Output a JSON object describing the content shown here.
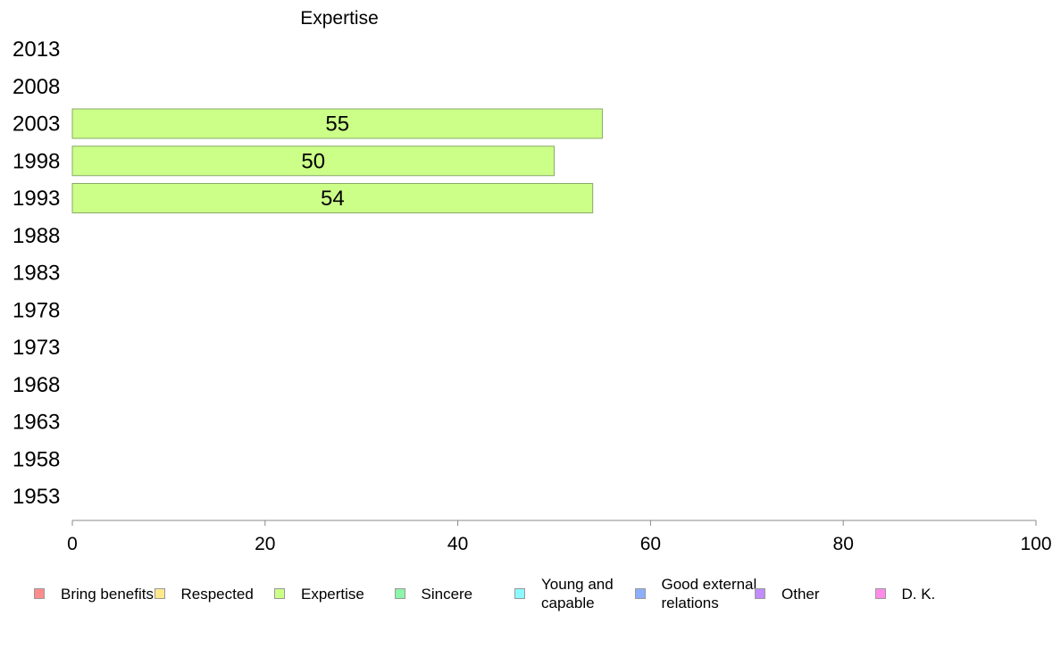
{
  "chart_data": {
    "type": "bar",
    "orientation": "horizontal",
    "title": "Expertise",
    "categories": [
      "2013",
      "2008",
      "2003",
      "1998",
      "1993",
      "1988",
      "1983",
      "1978",
      "1973",
      "1968",
      "1963",
      "1958",
      "1953"
    ],
    "series": [
      {
        "name": "Expertise",
        "color": "#ccff88",
        "values": [
          null,
          null,
          55,
          50,
          54,
          null,
          null,
          null,
          null,
          null,
          null,
          null,
          null
        ]
      }
    ],
    "xlim": [
      0,
      100
    ],
    "xticks": [
      "0",
      "20",
      "40",
      "60",
      "80",
      "100"
    ],
    "grid": false,
    "legend_position": "bottom"
  },
  "legend": [
    {
      "label": "Bring benefits",
      "color": "#ff8c8c"
    },
    {
      "label": "Respected",
      "color": "#ffe98c"
    },
    {
      "label": "Expertise",
      "color": "#ccff88"
    },
    {
      "label": "Sincere",
      "color": "#8cf5a8"
    },
    {
      "label": "Young and capable",
      "color": "#8cf8ff"
    },
    {
      "label": "Good external relations",
      "color": "#8cb0ff"
    },
    {
      "label": "Other",
      "color": "#c08cff"
    },
    {
      "label": "D. K.",
      "color": "#ff8ce8"
    }
  ]
}
